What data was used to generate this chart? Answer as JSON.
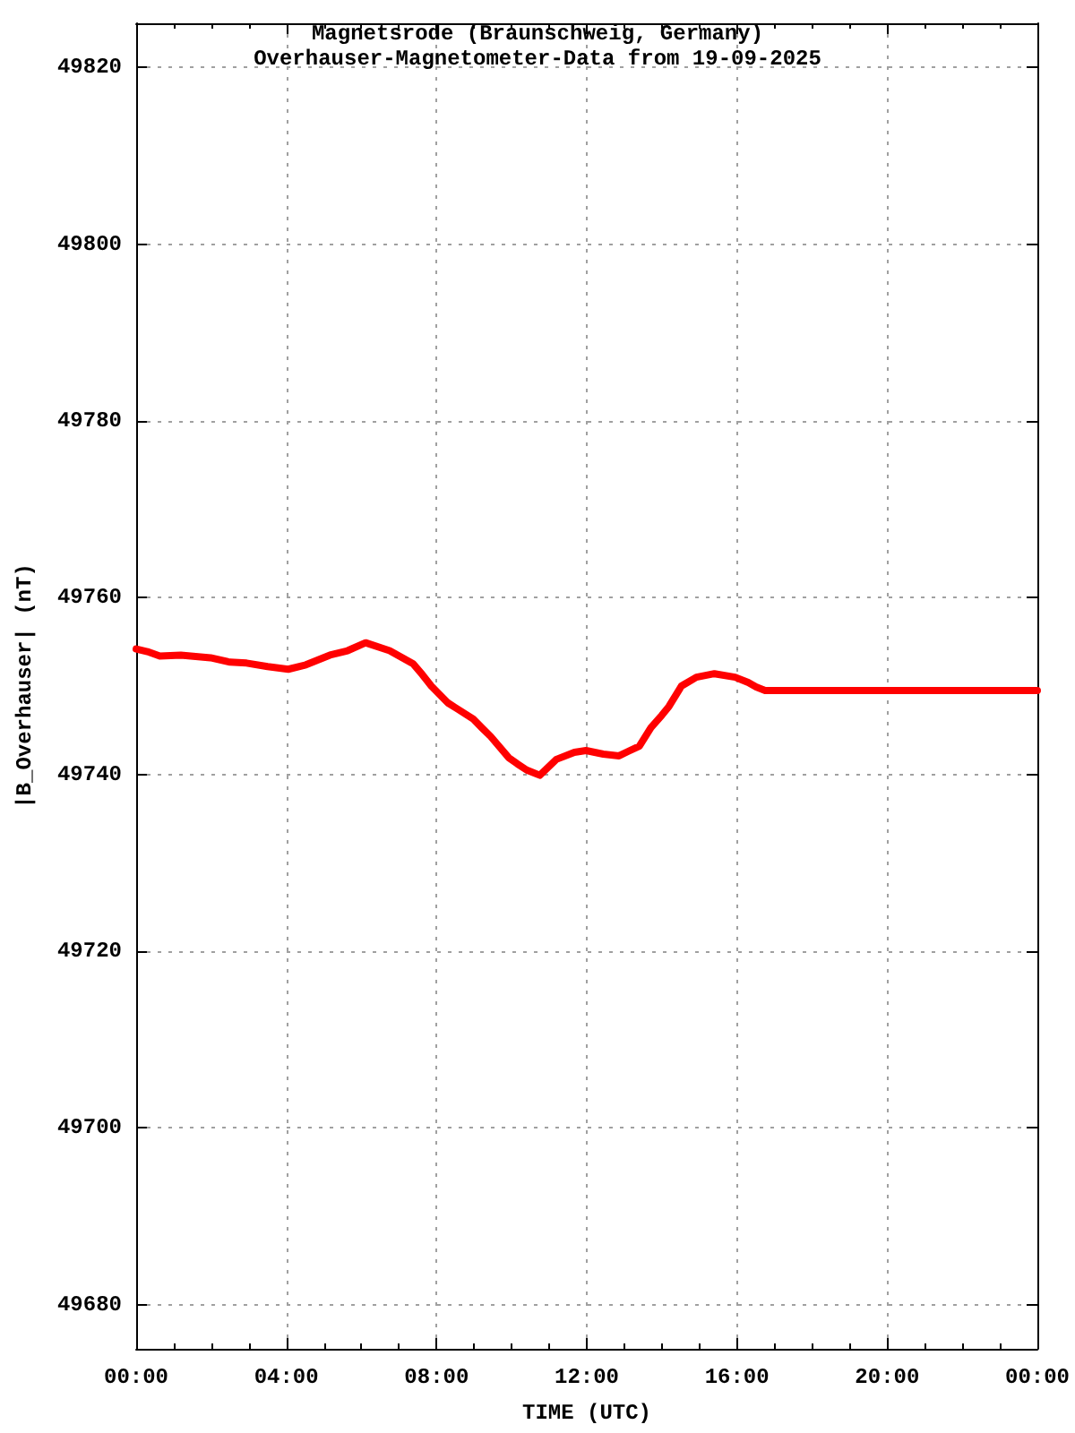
{
  "chart_data": {
    "type": "line",
    "title": "Magnetsrode (Braunschweig, Germany)",
    "subtitle": "Overhauser-Magnetometer-Data from 19-09-2025",
    "xlabel": "TIME (UTC)",
    "ylabel": "|B_Overhauser| (nT)",
    "color": "#ff0000",
    "x": [
      0,
      0.3,
      0.63,
      1.19,
      1.98,
      2.5,
      2.94,
      3.5,
      4.05,
      4.52,
      5.16,
      5.63,
      6.11,
      6.75,
      7.38,
      7.62,
      7.86,
      8.3,
      8.97,
      9.2,
      9.44,
      9.92,
      10.15,
      10.4,
      10.75,
      11.19,
      11.67,
      11.98,
      12.44,
      12.86,
      13.1,
      13.4,
      13.71,
      14.0,
      14.19,
      14.52,
      14.92,
      15.4,
      15.95,
      16.3,
      16.51,
      16.75,
      20,
      24
    ],
    "values": [
      49754.2,
      49753.9,
      49753.4,
      49753.5,
      49753.2,
      49752.7,
      49752.6,
      49752.2,
      49751.9,
      49752.4,
      49753.5,
      49754.0,
      49754.9,
      49754.0,
      49752.5,
      49751.3,
      49750.0,
      49748.1,
      49746.3,
      49745.3,
      49744.3,
      49741.9,
      49741.2,
      49740.5,
      49739.9,
      49741.7,
      49742.5,
      49742.7,
      49742.3,
      49742.1,
      49742.6,
      49743.2,
      49745.3,
      49746.7,
      49747.7,
      49750.0,
      49751.0,
      49751.4,
      49751.0,
      49750.4,
      49749.9,
      49749.5,
      49749.5,
      49749.5
    ],
    "xlim": [
      0,
      24
    ],
    "xticks": [
      {
        "value": 0,
        "label": "00:00"
      },
      {
        "value": 4,
        "label": "04:00"
      },
      {
        "value": 8,
        "label": "08:00"
      },
      {
        "value": 12,
        "label": "12:00"
      },
      {
        "value": 16,
        "label": "16:00"
      },
      {
        "value": 20,
        "label": "20:00"
      },
      {
        "value": 24,
        "label": "00:00"
      }
    ],
    "ylim": [
      49675,
      49825
    ],
    "yticks": [
      49680,
      49700,
      49720,
      49740,
      49760,
      49780,
      49800,
      49820
    ],
    "grid": true
  }
}
